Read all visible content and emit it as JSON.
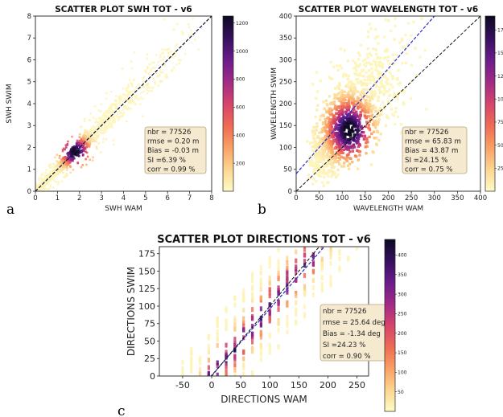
{
  "chart_data": [
    {
      "type": "heatmap",
      "panel_label": "a",
      "title": "SCATTER PLOT SWH TOT - v6",
      "xlabel": "SWH WAM",
      "ylabel": "SWH SWIM",
      "xlim": [
        0,
        8
      ],
      "ylim": [
        0,
        8
      ],
      "xticks": [
        0,
        1,
        2,
        3,
        4,
        5,
        6,
        7,
        8
      ],
      "yticks": [
        0,
        1,
        2,
        3,
        4,
        5,
        6,
        7,
        8
      ],
      "colorbar_ticks": [
        200,
        400,
        600,
        800,
        1000,
        1200
      ],
      "colorbar_range": [
        0,
        1250
      ],
      "stats": [
        "nbr = 77526",
        "rmse = 0.20 m",
        "Bias = -0.03 m",
        "SI =6.39 %",
        "corr = 0.99 %"
      ],
      "identity_line": true,
      "fit_line": {
        "slope": 1.0,
        "intercept": 0.0
      },
      "density_peak": [
        1.8,
        1.8
      ]
    },
    {
      "type": "heatmap",
      "panel_label": "b",
      "title": "SCATTER PLOT WAVELENGTH TOT - v6",
      "xlabel": "WAVELENGTH WAM",
      "ylabel": "WAVELENGTH SWIM",
      "xlim": [
        0,
        400
      ],
      "ylim": [
        0,
        400
      ],
      "xticks": [
        0,
        50,
        100,
        150,
        200,
        250,
        300,
        350,
        400
      ],
      "yticks": [
        0,
        50,
        100,
        150,
        200,
        250,
        300,
        350,
        400
      ],
      "colorbar_ticks": [
        25,
        50,
        75,
        100,
        125,
        150,
        175
      ],
      "colorbar_range": [
        0,
        190
      ],
      "stats": [
        "nbr = 77526",
        "rmse = 65.83 m",
        "Bias = 43.87 m",
        "SI =24.15 %",
        "corr = 0.75 %"
      ],
      "identity_line": true,
      "fit_line": {
        "slope": 1.2,
        "intercept": 40
      },
      "density_peak": [
        115,
        140
      ]
    },
    {
      "type": "heatmap",
      "panel_label": "c",
      "title": "SCATTER PLOT DIRECTIONS TOT - v6",
      "xlabel": "DIRECTIONS WAM",
      "ylabel": "DIRECTIONS SWIM",
      "xlim": [
        -90,
        270
      ],
      "ylim": [
        0,
        185
      ],
      "xticks": [
        -50,
        0,
        50,
        100,
        150,
        200,
        250
      ],
      "yticks": [
        0,
        25,
        50,
        75,
        100,
        125,
        150,
        175
      ],
      "colorbar_ticks": [
        50,
        100,
        150,
        200,
        250,
        300,
        350,
        400
      ],
      "colorbar_range": [
        0,
        440
      ],
      "stats": [
        "nbr = 77526",
        "rmse = 25.64 deg",
        "Bias = -1.34 deg",
        "SI =24.23 %",
        "corr = 0.90 %"
      ],
      "identity_line": true,
      "fit_line": {
        "slope": 0.95,
        "intercept": 1
      }
    }
  ],
  "colors": {
    "colormap": [
      "#fdfcc4",
      "#fcd591",
      "#f9a063",
      "#ef6a55",
      "#d5446d",
      "#a12a86",
      "#6a1c8a",
      "#35105e",
      "#0c0a21"
    ],
    "identity_line": "#111111",
    "fit_line": "#2b2bcc",
    "stats_box_fill": "#f5e9cf",
    "stats_box_edge": "#b8a47a"
  }
}
